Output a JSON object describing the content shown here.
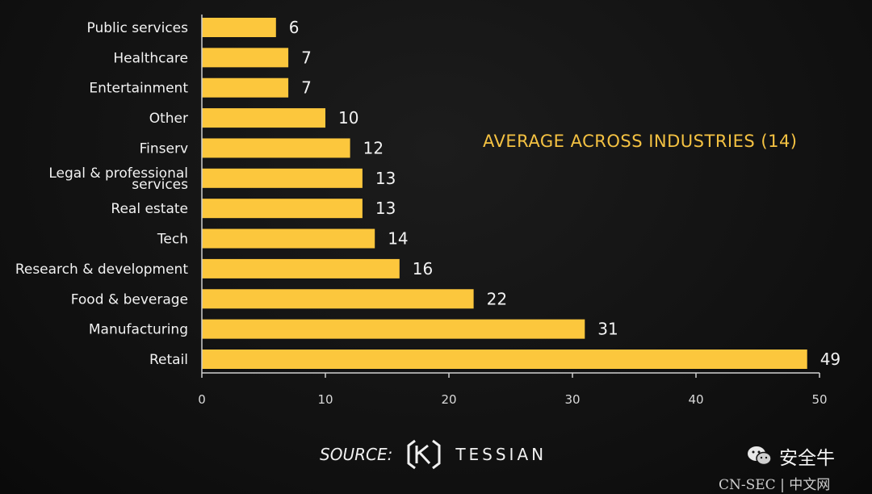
{
  "chart_data": {
    "type": "bar",
    "orientation": "horizontal",
    "categories": [
      "Public services",
      "Healthcare",
      "Entertainment",
      "Other",
      "Finserv",
      "Legal & professional services",
      "Real estate",
      "Tech",
      "Research & development",
      "Food & beverage",
      "Manufacturing",
      "Retail"
    ],
    "values": [
      6,
      7,
      7,
      10,
      12,
      13,
      13,
      14,
      16,
      22,
      31,
      49
    ],
    "xlim": [
      0,
      50
    ],
    "xticks": [
      0,
      10,
      20,
      30,
      40,
      50
    ],
    "title": "",
    "xlabel": "",
    "ylabel": "",
    "annotations": [
      "AVERAGE ACROSS INDUSTRIES (14)"
    ],
    "bar_color": "#fcc73d"
  },
  "source": {
    "label": "SOURCE:",
    "brand": "TESSIAN"
  },
  "watermark": {
    "text": "安全牛",
    "subtext": "CN-SEC | 中文网"
  }
}
